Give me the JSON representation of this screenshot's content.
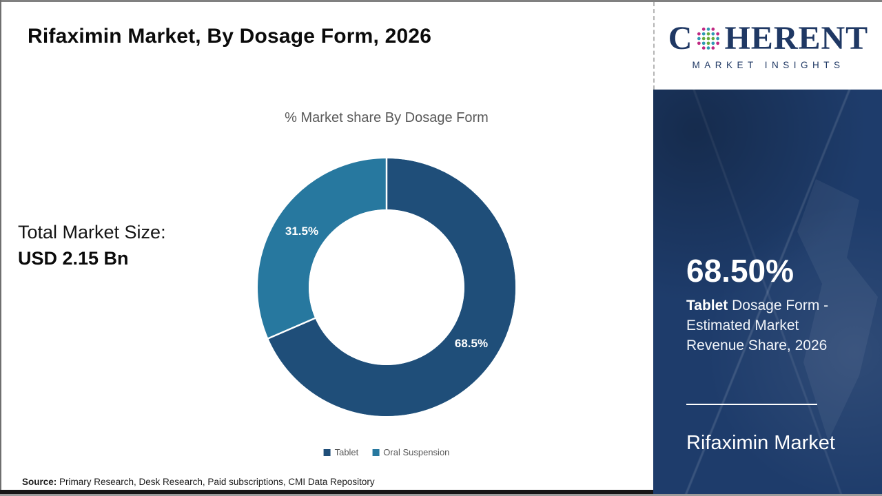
{
  "header": {
    "title": "Rifaximin Market, By Dosage Form, 2026"
  },
  "logo": {
    "brand_first": "C",
    "brand_rest": "HERENT",
    "tagline": "MARKET INSIGHTS",
    "brand_color": "#1f3864"
  },
  "left_stats": {
    "label": "Total Market Size:",
    "value": "USD 2.15 Bn"
  },
  "chart_data": {
    "type": "pie",
    "title": "% Market share By Dosage Form",
    "categories": [
      "Tablet",
      "Oral Suspension"
    ],
    "values": [
      68.5,
      31.5
    ],
    "labels": [
      "68.5%",
      "31.5%"
    ],
    "colors": {
      "tablet": "#1f4e79",
      "oral_suspension": "#27789f"
    },
    "legend_position": "bottom",
    "donut_hole": 0.6,
    "start_angle_deg": 0,
    "direction": "clockwise"
  },
  "sidebar": {
    "background": "#1e3c6b",
    "highlight_value": "68.50%",
    "highlight_bold": "Tablet",
    "highlight_rest": " Dosage Form - Estimated Market Revenue Share, 2026",
    "market_name": "Rifaximin Market"
  },
  "footer": {
    "source_label": "Source:",
    "source_text": " Primary Research, Desk Research, Paid subscriptions, CMI Data Repository"
  }
}
